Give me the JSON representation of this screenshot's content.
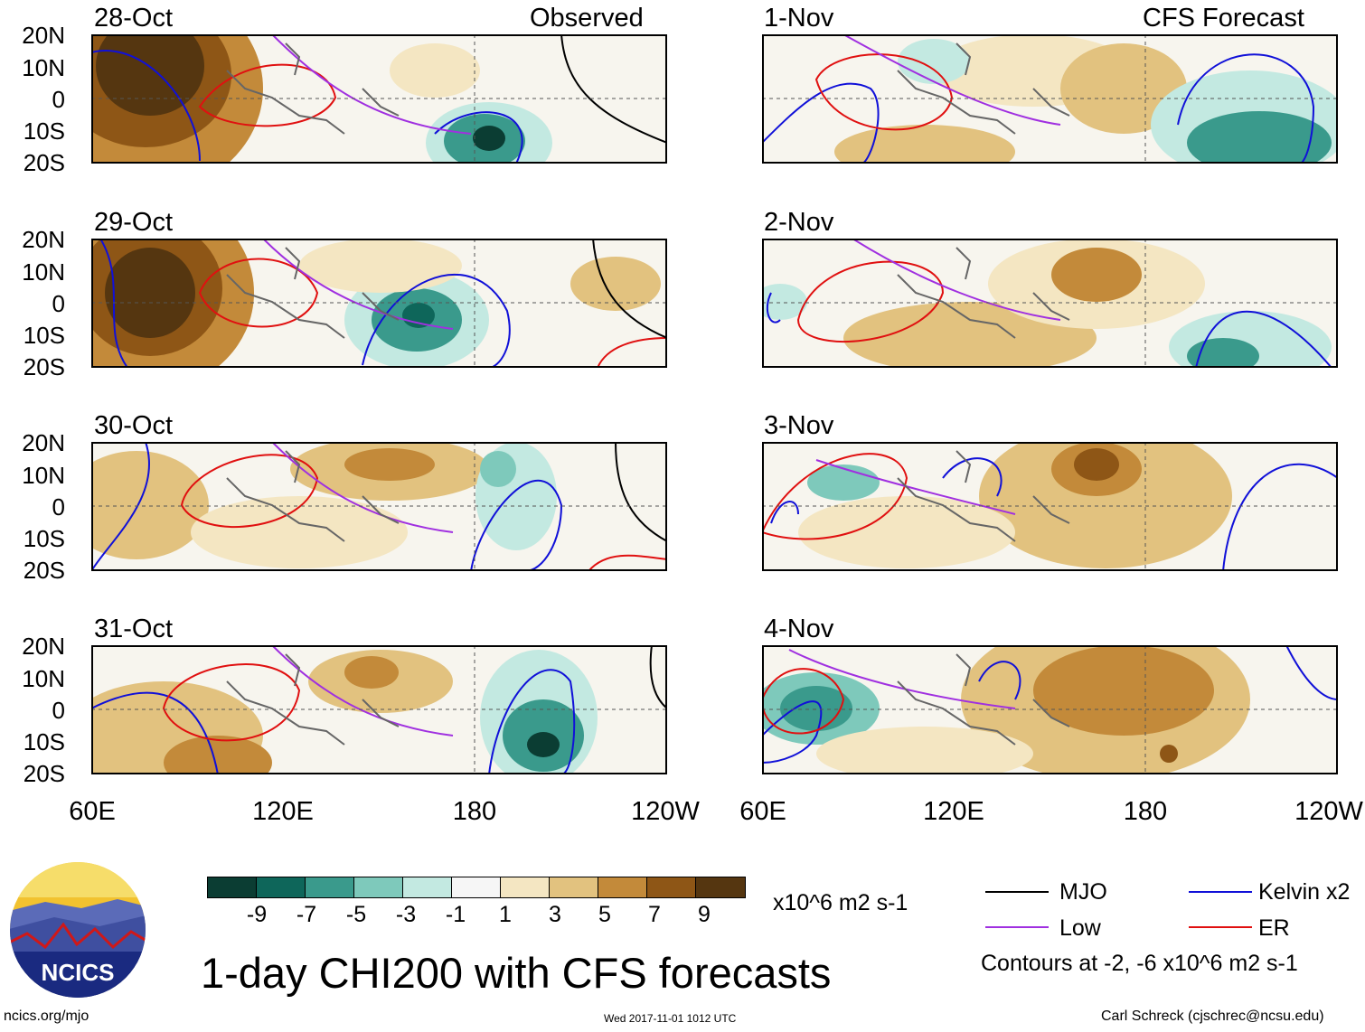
{
  "panels": {
    "left": [
      {
        "label": "28-Oct"
      },
      {
        "label": "29-Oct"
      },
      {
        "label": "30-Oct"
      },
      {
        "label": "31-Oct"
      }
    ],
    "right": [
      {
        "label": "1-Nov"
      },
      {
        "label": "2-Nov"
      },
      {
        "label": "3-Nov"
      },
      {
        "label": "4-Nov"
      }
    ],
    "left_header": "Observed",
    "right_header": "CFS Forecast"
  },
  "axes": {
    "lat_labels": [
      "20N",
      "10N",
      "0",
      "10S",
      "20S"
    ],
    "lon_labels": [
      "60E",
      "120E",
      "180",
      "120W"
    ]
  },
  "colorbar": {
    "ticks": [
      "-9",
      "-7",
      "-5",
      "-3",
      "-1",
      "1",
      "3",
      "5",
      "7",
      "9"
    ],
    "colors": [
      "#0b3d33",
      "#0e665a",
      "#3a9a8c",
      "#7ec9bb",
      "#c3e9e1",
      "#f6f6f6",
      "#f4e6c2",
      "#e2c27f",
      "#c38a3a",
      "#8e5616",
      "#553610"
    ],
    "units": "x10^6 m2 s-1"
  },
  "legend": {
    "items": [
      {
        "label": "MJO",
        "color": "#000000"
      },
      {
        "label": "Kelvin x2",
        "color": "#1010d8"
      },
      {
        "label": "Low",
        "color": "#a030e0"
      },
      {
        "label": "ER",
        "color": "#e01010"
      }
    ],
    "contour_note": "Contours at -2, -6 x10^6 m2 s-1"
  },
  "title": "1-day CHI200 with CFS forecasts",
  "footer": {
    "left": "ncics.org/mjo",
    "center": "Wed 2017-11-01 1012 UTC",
    "right": "Carl Schreck (cjschrec@ncsu.edu)"
  },
  "logo": {
    "text": "NCICS"
  }
}
